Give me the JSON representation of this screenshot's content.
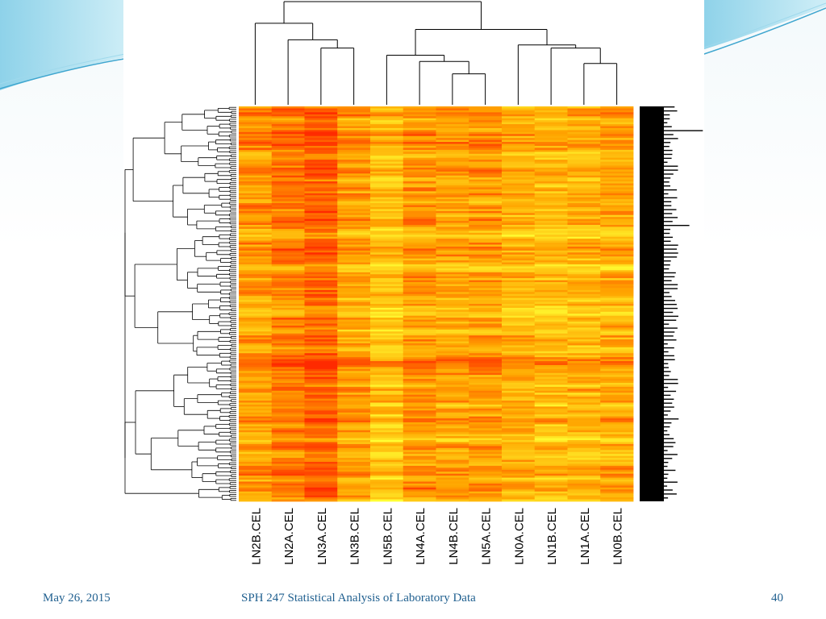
{
  "slide": {
    "footer_date": "May 26, 2015",
    "footer_title": "SPH 247 Statistical Analysis of Laboratory Data",
    "page_number": "40"
  },
  "colors": {
    "footer_text": "#1f5f8f",
    "swoosh_light": "#9fd9ec",
    "swoosh_dark": "#3fa6cf",
    "heat_low": "#ffff33",
    "heat_mid": "#ffa500",
    "heat_high": "#ff2a00",
    "row_labels": "#000000"
  },
  "chart_data": {
    "type": "heatmap",
    "title": "",
    "xlabel": "",
    "ylabel": "",
    "columns": [
      "LN2B.CEL",
      "LN2A.CEL",
      "LN3A.CEL",
      "LN3B.CEL",
      "LN5B.CEL",
      "LN4A.CEL",
      "LN4B.CEL",
      "LN5A.CEL",
      "LN0A.CEL",
      "LN1B.CEL",
      "LN1A.CEL",
      "LN0B.CEL"
    ],
    "column_dendrogram": {
      "leaves": [
        "LN2B.CEL",
        "LN2A.CEL",
        "LN3A.CEL",
        "LN3B.CEL",
        "LN5B.CEL",
        "LN4A.CEL",
        "LN4B.CEL",
        "LN5A.CEL",
        "LN0A.CEL",
        "LN1B.CEL",
        "LN1A.CEL",
        "LN0B.CEL"
      ],
      "merges": [
        {
          "a": "LN3A.CEL",
          "b": "LN3B.CEL",
          "height": 0.55
        },
        {
          "a": "LN4B.CEL",
          "b": "LN5A.CEL",
          "height": 0.3
        },
        {
          "a": "LN1A.CEL",
          "b": "LN0B.CEL",
          "height": 0.4
        },
        {
          "a": "LN4A.CEL",
          "b": "{LN4B.CEL,LN5A.CEL}",
          "height": 0.42
        },
        {
          "a": "LN1B.CEL",
          "b": "{LN1A.CEL,LN0B.CEL}",
          "height": 0.55
        },
        {
          "a": "LN2A.CEL",
          "b": "{LN3A.CEL,LN3B.CEL}",
          "height": 0.63
        },
        {
          "a": "LN5B.CEL",
          "b": "{LN4A.CEL,LN4B.CEL,LN5A.CEL}",
          "height": 0.48
        },
        {
          "a": "LN0A.CEL",
          "b": "{LN1B.CEL,LN1A.CEL,LN0B.CEL}",
          "height": 0.58
        },
        {
          "a": "LN2B.CEL",
          "b": "{LN2A.CEL,LN3A.CEL,LN3B.CEL}",
          "height": 0.79
        },
        {
          "a": "{LN5B.CEL,LN4A.CEL,LN4B.CEL,LN5A.CEL}",
          "b": "{LN0A.CEL,LN1B.CEL,LN1A.CEL,LN0B.CEL}",
          "height": 0.73
        },
        {
          "a": "{LN2B..LN3B}",
          "b": "{LN5B..LN0B}",
          "height": 1.0
        }
      ]
    },
    "column_mean_intensity": [
      0.55,
      0.68,
      0.78,
      0.52,
      0.35,
      0.55,
      0.5,
      0.55,
      0.45,
      0.4,
      0.42,
      0.48
    ],
    "n_rows_approx": 200,
    "color_scale": [
      "#ffff33",
      "#ffa500",
      "#ff2a00"
    ],
    "row_dendrogram": true,
    "row_labels_legible": false,
    "grid": false,
    "legend": "none"
  }
}
